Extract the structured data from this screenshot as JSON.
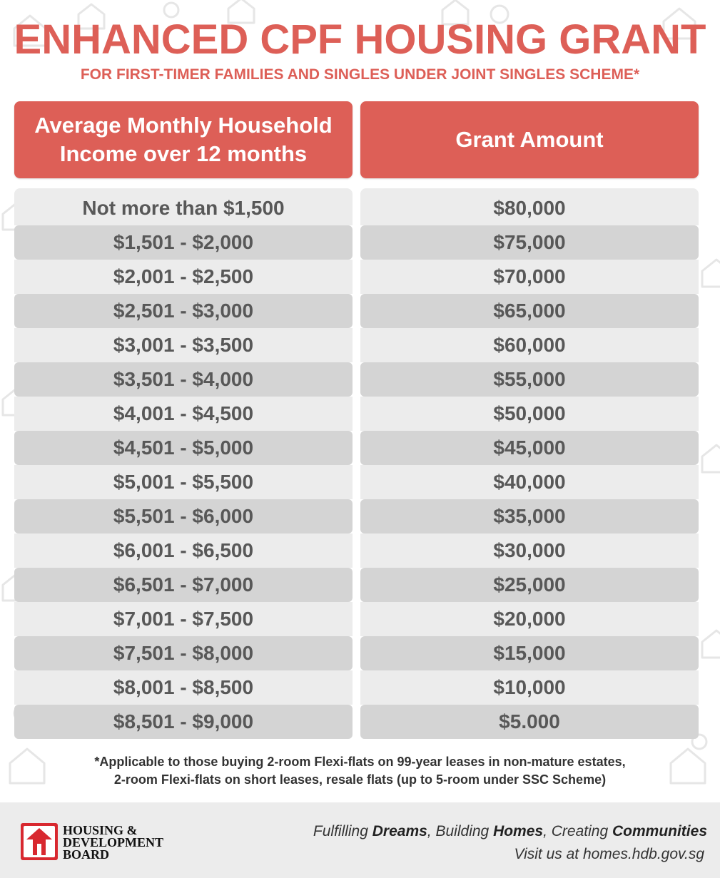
{
  "header": {
    "title": "ENHANCED CPF HOUSING GRANT",
    "subtitle": "FOR FIRST-TIMER FAMILIES AND SINGLES UNDER JOINT SINGLES SCHEME*"
  },
  "table": {
    "columns": [
      "Average Monthly Household",
      "Income over 12 months",
      "Grant Amount"
    ],
    "rows": [
      {
        "income": "Not more than $1,500",
        "grant": "$80,000"
      },
      {
        "income": "$1,501 - $2,000",
        "grant": "$75,000"
      },
      {
        "income": "$2,001 - $2,500",
        "grant": "$70,000"
      },
      {
        "income": "$2,501 - $3,000",
        "grant": "$65,000"
      },
      {
        "income": "$3,001 - $3,500",
        "grant": "$60,000"
      },
      {
        "income": "$3,501 - $4,000",
        "grant": "$55,000"
      },
      {
        "income": "$4,001 - $4,500",
        "grant": "$50,000"
      },
      {
        "income": "$4,501 - $5,000",
        "grant": "$45,000"
      },
      {
        "income": "$5,001 - $5,500",
        "grant": "$40,000"
      },
      {
        "income": "$5,501 - $6,000",
        "grant": "$35,000"
      },
      {
        "income": "$6,001 - $6,500",
        "grant": "$30,000"
      },
      {
        "income": "$6,501 - $7,000",
        "grant": "$25,000"
      },
      {
        "income": "$7,001 - $7,500",
        "grant": "$20,000"
      },
      {
        "income": "$7,501 - $8,000",
        "grant": "$15,000"
      },
      {
        "income": "$8,001 - $8,500",
        "grant": "$10,000"
      },
      {
        "income": "$8,501 - $9,000",
        "grant": "$5.000"
      }
    ]
  },
  "footnote": {
    "line1": "*Applicable to those buying 2-room Flexi-flats on 99-year leases in non-mature estates,",
    "line2": "2-room Flexi-flats on short leases, resale flats (up to 5-room under SSC Scheme)"
  },
  "footer": {
    "logo_lines": [
      "HOUSING &",
      "DEVELOPMENT",
      "BOARD"
    ],
    "tagline_parts": [
      "Fulfilling ",
      "Dreams",
      ", Building ",
      "Homes",
      ", Creating ",
      "Communities"
    ],
    "visit": "Visit us at homes.hdb.gov.sg"
  },
  "colors": {
    "accent": "#dd5f57",
    "row_light": "#ececec",
    "row_dark": "#d4d4d4",
    "text": "#585858"
  }
}
